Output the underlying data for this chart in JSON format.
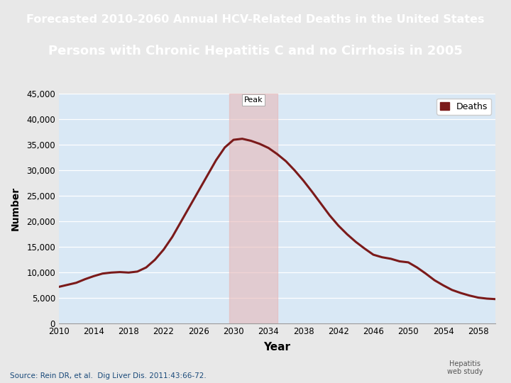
{
  "title_line1": "Forecasted 2010-2060 Annual HCV-Related Deaths in the United States",
  "title_line2": "Persons with Chronic Hepatitis C and no Cirrhosis in 2005",
  "title_bg_color": "#1e3f6e",
  "title_text_color": "#ffffff",
  "xlabel": "Year",
  "ylabel": "Number",
  "plot_bg_color": "#d9e8f5",
  "fig_bg_color": "#e8e8e8",
  "line_color": "#7b1a1a",
  "line_width": 2.2,
  "peak_shade_color": "#e8b8b8",
  "peak_shade_alpha": 0.6,
  "peak_start": 2029.5,
  "peak_end": 2035,
  "peak_label": "Peak",
  "legend_label": "Deaths",
  "legend_marker_color": "#7b1a1a",
  "source_text": "Source: Rein DR, et al.  Dig Liver Dis. 2011:43:66-72.",
  "ylim": [
    0,
    45000
  ],
  "ytick_step": 5000,
  "xticks": [
    2010,
    2014,
    2018,
    2022,
    2026,
    2030,
    2034,
    2038,
    2042,
    2046,
    2050,
    2054,
    2058
  ],
  "years": [
    2010,
    2011,
    2012,
    2013,
    2014,
    2015,
    2016,
    2017,
    2018,
    2019,
    2020,
    2021,
    2022,
    2023,
    2024,
    2025,
    2026,
    2027,
    2028,
    2029,
    2030,
    2031,
    2032,
    2033,
    2034,
    2035,
    2036,
    2037,
    2038,
    2039,
    2040,
    2041,
    2042,
    2043,
    2044,
    2045,
    2046,
    2047,
    2048,
    2049,
    2050,
    2051,
    2052,
    2053,
    2054,
    2055,
    2056,
    2057,
    2058,
    2059,
    2060
  ],
  "deaths": [
    7200,
    7600,
    8000,
    8700,
    9300,
    9800,
    10000,
    10100,
    10000,
    10200,
    11000,
    12500,
    14500,
    17000,
    20000,
    23000,
    26000,
    29000,
    32000,
    34500,
    36000,
    36200,
    35800,
    35200,
    34400,
    33200,
    31800,
    30000,
    28000,
    25800,
    23500,
    21200,
    19200,
    17500,
    16000,
    14700,
    13500,
    13000,
    12700,
    12200,
    12000,
    11000,
    9800,
    8500,
    7500,
    6600,
    6000,
    5500,
    5100,
    4900,
    4800
  ],
  "separator_color": "#b07070",
  "separator_height": 0.006
}
